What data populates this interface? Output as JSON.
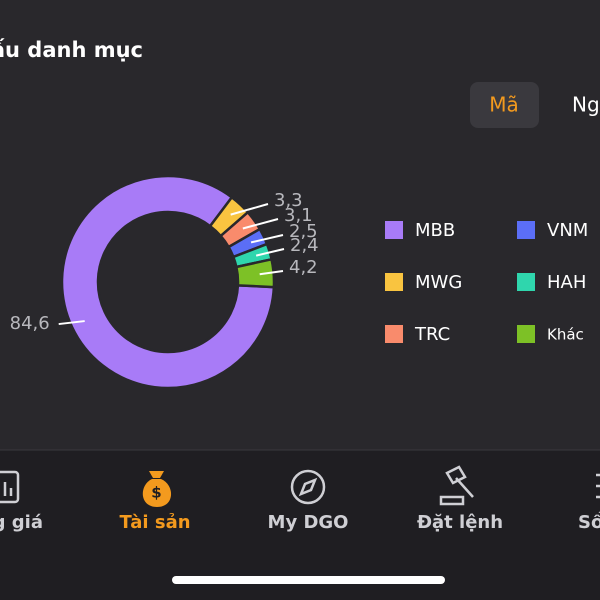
{
  "header": {
    "title": "Cơ cấu danh mục"
  },
  "toggle": {
    "options": [
      "Mã",
      "Ngành"
    ],
    "selected": 0
  },
  "chart_data": {
    "type": "donut",
    "categories": [
      "MBB",
      "MWG",
      "TRC",
      "VNM",
      "HAH",
      "Khác"
    ],
    "values": [
      84.6,
      3.3,
      3.1,
      2.5,
      2.4,
      4.2
    ],
    "value_labels": [
      "84,6",
      "3,3",
      "3,1",
      "2,5",
      "2,4",
      "4,2"
    ],
    "colors": [
      "#a87bf7",
      "#f9c440",
      "#f98b6c",
      "#5b6ef6",
      "#2fd6ad",
      "#7dc126"
    ]
  },
  "nav": {
    "items": [
      "Bảng giá",
      "Tài sản",
      "My DGO",
      "Đặt lệnh",
      "Sổ lệnh"
    ],
    "selected": 1
  }
}
